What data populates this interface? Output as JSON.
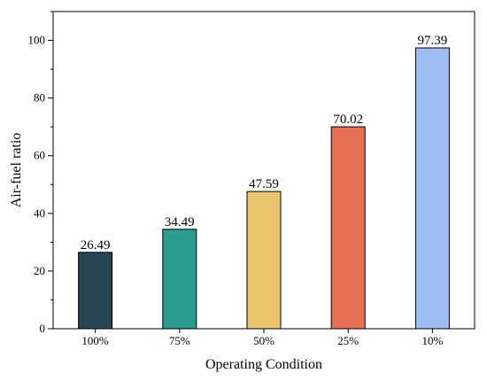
{
  "chart_data": {
    "type": "bar",
    "title": "",
    "xlabel": "Operating Condition",
    "ylabel": "Air-fuel ratio",
    "categories": [
      "100%",
      "75%",
      "50%",
      "25%",
      "10%"
    ],
    "values": [
      26.49,
      34.49,
      47.59,
      70.02,
      97.39
    ],
    "value_labels": [
      "26.49",
      "34.49",
      "47.59",
      "70.02",
      "97.39"
    ],
    "colors": [
      "#264653",
      "#2a9d8f",
      "#e9c46a",
      "#e76f51",
      "#9dbdf2"
    ],
    "ylim": [
      0,
      110
    ],
    "yticks": [
      0,
      20,
      40,
      60,
      80,
      100
    ],
    "ytick_labels": [
      "0",
      "20",
      "40",
      "60",
      "80",
      "100"
    ],
    "grid": false,
    "legend": "none"
  }
}
